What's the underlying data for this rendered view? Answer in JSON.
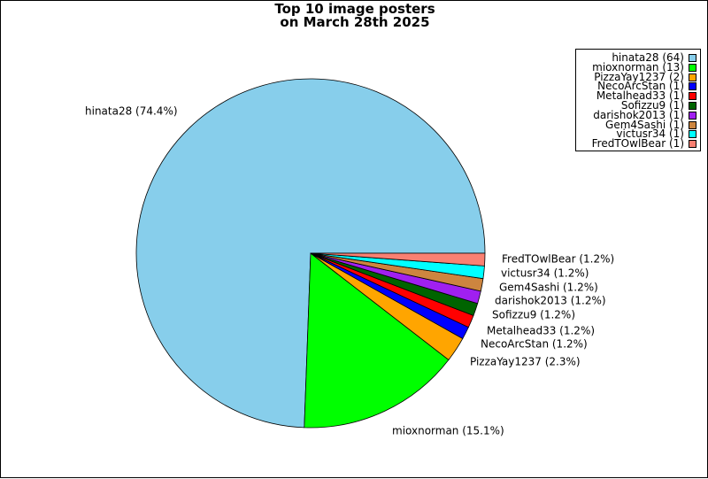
{
  "chart_data": {
    "type": "pie",
    "title": [
      "Top 10 image posters",
      "on March 28th 2025"
    ],
    "slices": [
      {
        "name": "hinata28",
        "count": 64,
        "percent": 74.4,
        "color": "#87CEEB",
        "legend": "hinata28 (64)",
        "label": "hinata28 (74.4%)"
      },
      {
        "name": "mioxnorman",
        "count": 13,
        "percent": 15.1,
        "color": "#00FF00",
        "legend": "mioxnorman (13)",
        "label": "mioxnorman (15.1%)"
      },
      {
        "name": "PizzaYay1237",
        "count": 2,
        "percent": 2.3,
        "color": "#FFA500",
        "legend": "PizzaYay1237 (2)",
        "label": "PizzaYay1237 (2.3%)"
      },
      {
        "name": "NecoArcStan",
        "count": 1,
        "percent": 1.2,
        "color": "#0000FF",
        "legend": "NecoArcStan (1)",
        "label": "NecoArcStan (1.2%)"
      },
      {
        "name": "Metalhead33",
        "count": 1,
        "percent": 1.2,
        "color": "#FF0000",
        "legend": "Metalhead33 (1)",
        "label": "Metalhead33 (1.2%)"
      },
      {
        "name": "Sofizzu9",
        "count": 1,
        "percent": 1.2,
        "color": "#006400",
        "legend": "Sofizzu9 (1)",
        "label": "Sofizzu9 (1.2%)"
      },
      {
        "name": "darishok2013",
        "count": 1,
        "percent": 1.2,
        "color": "#A020F0",
        "legend": "darishok2013 (1)",
        "label": "darishok2013 (1.2%)"
      },
      {
        "name": "Gem4Sashi",
        "count": 1,
        "percent": 1.2,
        "color": "#CD853F",
        "legend": "Gem4Sashi (1)",
        "label": "Gem4Sashi (1.2%)"
      },
      {
        "name": "victusr34",
        "count": 1,
        "percent": 1.2,
        "color": "#00FFFF",
        "legend": "victusr34 (1)",
        "label": "victusr34 (1.2%)"
      },
      {
        "name": "FredTOwlBear",
        "count": 1,
        "percent": 1.2,
        "color": "#FA8072",
        "legend": "FredTOwlBear (1)",
        "label": "FredTOwlBear (1.2%)"
      }
    ],
    "legend_position": "top-right"
  }
}
